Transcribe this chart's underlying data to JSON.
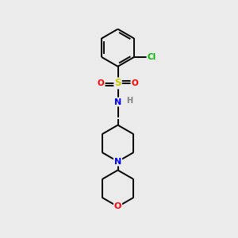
{
  "background_color": "#ebebeb",
  "bond_color": "#000000",
  "atom_colors": {
    "Cl": "#00bb00",
    "S": "#cccc00",
    "O": "#ff0000",
    "N": "#0000ff",
    "H": "#808080",
    "C": "#000000"
  },
  "figsize": [
    3.0,
    3.0
  ],
  "dpi": 100,
  "lw": 1.4,
  "fontsize": 7.5
}
